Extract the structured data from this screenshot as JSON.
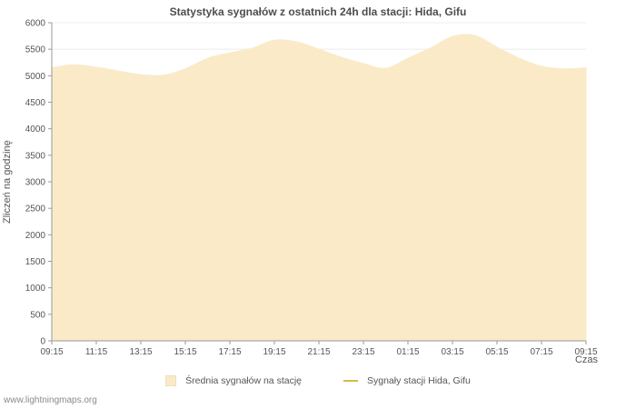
{
  "watermark": "www.lightningmaps.org",
  "chart_data": {
    "type": "area",
    "title": "Statystyka sygnałów z ostatnich 24h dla stacji: Hida, Gifu",
    "xlabel": "Czas",
    "ylabel": "Zliczeń na godzinę",
    "ylim": [
      0,
      6000
    ],
    "ytick_step": 500,
    "grid": true,
    "legend_position": "bottom",
    "x": [
      "09:15",
      "10:15",
      "11:15",
      "12:15",
      "13:15",
      "14:15",
      "15:15",
      "16:15",
      "17:15",
      "18:15",
      "19:15",
      "20:15",
      "21:15",
      "22:15",
      "23:15",
      "00:15",
      "01:15",
      "02:15",
      "03:15",
      "04:15",
      "05:15",
      "06:15",
      "07:15",
      "08:15",
      "09:15"
    ],
    "x_tick_every": 2,
    "series": [
      {
        "name": "Średnia sygnałów na stację",
        "type": "area",
        "color": "#faeac8",
        "values": [
          5150,
          5210,
          5160,
          5090,
          5020,
          5010,
          5130,
          5330,
          5430,
          5520,
          5670,
          5640,
          5500,
          5350,
          5230,
          5140,
          5330,
          5520,
          5740,
          5760,
          5540,
          5330,
          5180,
          5130,
          5150
        ]
      },
      {
        "name": "Sygnały stacji Hida, Gifu",
        "type": "line",
        "color": "#d9b84a",
        "values": []
      }
    ]
  }
}
